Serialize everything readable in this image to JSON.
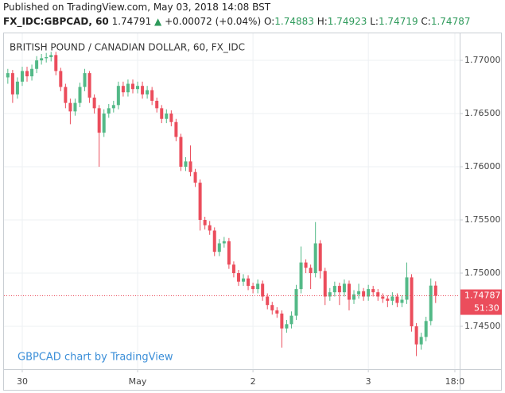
{
  "header": {
    "published": "Published on TradingView.com, May 03, 2018 14:08 BST",
    "symbol": "FX_IDC:GBPCAD, 60",
    "last": "1.74791",
    "change": "+0.00072 (+0.04%)",
    "o_label": "O:",
    "o": "1.74883",
    "h_label": "H:",
    "h": "1.74923",
    "l_label": "L:",
    "l": "1.74719",
    "c_label": "C:",
    "c": "1.74787"
  },
  "chart_data": {
    "type": "candlestick",
    "title": "BRITISH POUND / CANADIAN DOLLAR, 60, FX_IDC",
    "watermark": "GBPCAD chart by TradingView",
    "countdown": "51:30",
    "up_color": "#53b987",
    "down_color": "#eb4d5c",
    "grid": true,
    "ylim": [
      1.74097,
      1.77254
    ],
    "yticks": [
      {
        "value": 1.745,
        "label": "1.74500"
      },
      {
        "value": 1.75,
        "label": "1.75000"
      },
      {
        "value": 1.755,
        "label": "1.75500"
      },
      {
        "value": 1.76,
        "label": "1.76000"
      },
      {
        "value": 1.765,
        "label": "1.76500"
      },
      {
        "value": 1.77,
        "label": "1.77000"
      }
    ],
    "xlim": [
      -0.8,
      94
    ],
    "xticks": [
      {
        "value": 3,
        "label": "30"
      },
      {
        "value": 27,
        "label": "May"
      },
      {
        "value": 51,
        "label": "2"
      },
      {
        "value": 75,
        "label": "3"
      },
      {
        "value": 93,
        "label": "18:0"
      }
    ],
    "open": [
      1.7684,
      1.7688,
      1.7668,
      1.768,
      1.769,
      1.7685,
      1.7692,
      1.77,
      1.7702,
      1.7703,
      1.7705,
      1.769,
      1.7675,
      1.766,
      1.7652,
      1.766,
      1.7675,
      1.7688,
      1.7665,
      1.7655,
      1.7632,
      1.765,
      1.7655,
      1.7658,
      1.7676,
      1.767,
      1.7678,
      1.7673,
      1.7676,
      1.7668,
      1.7672,
      1.7662,
      1.7655,
      1.7645,
      1.765,
      1.7642,
      1.7628,
      1.76,
      1.7605,
      1.7595,
      1.7585,
      1.755,
      1.7545,
      1.754,
      1.752,
      1.7528,
      1.753,
      1.7508,
      1.75,
      1.7492,
      1.7495,
      1.7488,
      1.7485,
      1.749,
      1.7478,
      1.747,
      1.7465,
      1.7462,
      1.7448,
      1.7452,
      1.746,
      1.7485,
      1.751,
      1.7505,
      1.75,
      1.7528,
      1.7502,
      1.7478,
      1.7482,
      1.7488,
      1.7482,
      1.749,
      1.7475,
      1.748,
      1.7483,
      1.7478,
      1.7485,
      1.7482,
      1.7478,
      1.7476,
      1.7474,
      1.7478,
      1.7472,
      1.7475,
      1.7496,
      1.745,
      1.7433,
      1.744,
      1.7455,
      1.74883
    ],
    "high": [
      1.7692,
      1.7691,
      1.7684,
      1.7694,
      1.7694,
      1.7696,
      1.7704,
      1.7706,
      1.7707,
      1.7708,
      1.7708,
      1.7693,
      1.7678,
      1.7664,
      1.7664,
      1.7679,
      1.7692,
      1.769,
      1.7668,
      1.7658,
      1.7654,
      1.7659,
      1.7662,
      1.768,
      1.768,
      1.7682,
      1.7682,
      1.768,
      1.768,
      1.7676,
      1.7675,
      1.7665,
      1.7658,
      1.7654,
      1.7653,
      1.7645,
      1.7631,
      1.7609,
      1.762,
      1.7598,
      1.7588,
      1.7553,
      1.7549,
      1.7543,
      1.7532,
      1.7534,
      1.7533,
      1.7511,
      1.7503,
      1.7499,
      1.7498,
      1.7491,
      1.7494,
      1.7493,
      1.7481,
      1.7473,
      1.7468,
      1.7465,
      1.7456,
      1.7464,
      1.7489,
      1.7525,
      1.7513,
      1.7508,
      1.7548,
      1.7531,
      1.7505,
      1.7486,
      1.7492,
      1.7491,
      1.7494,
      1.7493,
      1.7484,
      1.749,
      1.7486,
      1.7489,
      1.7488,
      1.7485,
      1.7481,
      1.7479,
      1.7482,
      1.7481,
      1.7479,
      1.751,
      1.7499,
      1.7453,
      1.7444,
      1.7459,
      1.7495,
      1.74923
    ],
    "low": [
      1.7678,
      1.766,
      1.7664,
      1.7676,
      1.768,
      1.7681,
      1.7688,
      1.7696,
      1.7698,
      1.7699,
      1.7686,
      1.7671,
      1.7655,
      1.764,
      1.7648,
      1.7656,
      1.7671,
      1.766,
      1.765,
      1.76,
      1.7628,
      1.7646,
      1.7651,
      1.7654,
      1.7666,
      1.7666,
      1.7669,
      1.7669,
      1.7664,
      1.7664,
      1.7658,
      1.7651,
      1.7641,
      1.7641,
      1.7638,
      1.7624,
      1.7596,
      1.7596,
      1.7591,
      1.7581,
      1.754,
      1.7541,
      1.7536,
      1.7516,
      1.7516,
      1.7524,
      1.7504,
      1.7496,
      1.7488,
      1.7488,
      1.7484,
      1.7481,
      1.7481,
      1.7474,
      1.7466,
      1.7461,
      1.7458,
      1.743,
      1.7444,
      1.7448,
      1.7456,
      1.7481,
      1.75,
      1.7485,
      1.7496,
      1.7495,
      1.747,
      1.7474,
      1.7478,
      1.747,
      1.7478,
      1.7465,
      1.7471,
      1.7476,
      1.7474,
      1.7474,
      1.7478,
      1.7474,
      1.7472,
      1.7468,
      1.747,
      1.7468,
      1.7468,
      1.7471,
      1.7445,
      1.7422,
      1.7428,
      1.7436,
      1.7451,
      1.74719
    ],
    "close": [
      1.7688,
      1.7668,
      1.768,
      1.769,
      1.7685,
      1.7692,
      1.77,
      1.7702,
      1.7703,
      1.7705,
      1.769,
      1.7675,
      1.766,
      1.7652,
      1.766,
      1.7675,
      1.7688,
      1.7665,
      1.7655,
      1.7632,
      1.765,
      1.7655,
      1.7658,
      1.7676,
      1.767,
      1.7678,
      1.7673,
      1.7676,
      1.7668,
      1.7672,
      1.7662,
      1.7655,
      1.7645,
      1.765,
      1.7642,
      1.7628,
      1.76,
      1.7605,
      1.7595,
      1.7585,
      1.755,
      1.7545,
      1.754,
      1.752,
      1.7528,
      1.753,
      1.7508,
      1.75,
      1.7492,
      1.7495,
      1.7488,
      1.7485,
      1.749,
      1.7478,
      1.747,
      1.7465,
      1.7462,
      1.7448,
      1.7452,
      1.746,
      1.7485,
      1.751,
      1.7505,
      1.75,
      1.7528,
      1.7502,
      1.7478,
      1.7482,
      1.7488,
      1.7482,
      1.749,
      1.7475,
      1.748,
      1.7483,
      1.7478,
      1.7485,
      1.7482,
      1.7478,
      1.7476,
      1.7474,
      1.7478,
      1.7472,
      1.7475,
      1.7496,
      1.745,
      1.7433,
      1.744,
      1.7455,
      1.74883,
      1.74787
    ]
  }
}
